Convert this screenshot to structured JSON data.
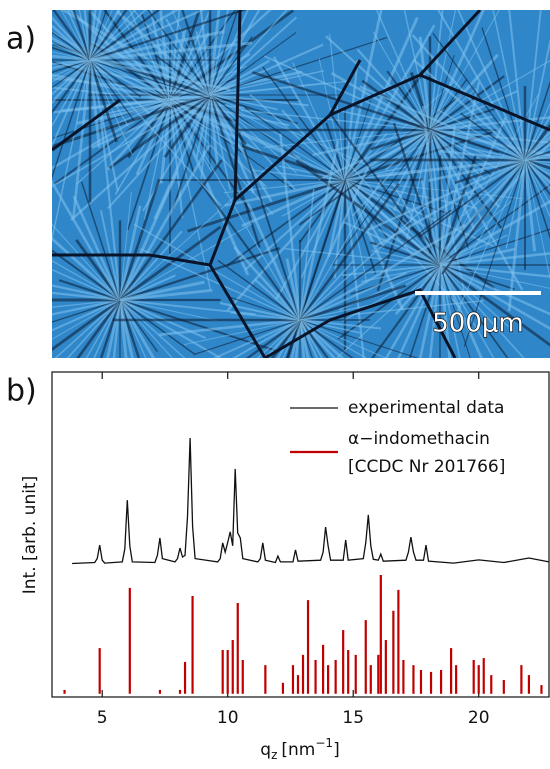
{
  "panel_a": {
    "label": "a)",
    "scale_bar_label": "500μm"
  },
  "chart_data": {
    "type": "line+stick",
    "panel_label": "b)",
    "ylabel": "Int. [arb. unit]",
    "xlabel": {
      "base": "q",
      "sub": "z",
      "unit": "[nm",
      "sup": "−1",
      "close": "]"
    },
    "xlim": [
      3,
      22.8
    ],
    "xticks": [
      5,
      10,
      15,
      20
    ],
    "ylim": [
      -1,
      100
    ],
    "series": [
      {
        "name": "experimental data",
        "color": "#111111",
        "kind": "line",
        "x": [
          3.8,
          4.7,
          4.8,
          4.9,
          5.0,
          5.1,
          5.8,
          5.9,
          6.0,
          6.1,
          6.2,
          7.1,
          7.2,
          7.3,
          7.4,
          7.9,
          8.0,
          8.1,
          8.2,
          8.3,
          8.4,
          8.5,
          8.6,
          8.7,
          9.6,
          9.7,
          9.8,
          9.9,
          10.0,
          10.1,
          10.2,
          10.3,
          10.4,
          10.5,
          10.6,
          11.2,
          11.3,
          11.4,
          11.5,
          11.9,
          12.0,
          12.1,
          12.6,
          12.7,
          12.8,
          13.7,
          13.8,
          13.9,
          14.0,
          14.1,
          14.6,
          14.7,
          14.8,
          15.4,
          15.5,
          15.6,
          15.7,
          15.8,
          16.0,
          16.1,
          16.2,
          17.1,
          17.2,
          17.3,
          17.4,
          17.5,
          17.8,
          17.9,
          18.0,
          19.0,
          20.0,
          21.0,
          22.0,
          22.8
        ],
        "values": [
          40.5,
          40.8,
          42,
          46.2,
          41.5,
          40.6,
          41,
          45,
          60.2,
          46,
          41,
          40.8,
          43,
          48.4,
          42,
          41,
          42,
          45.3,
          42.5,
          43,
          55,
          79.5,
          52,
          42,
          41,
          42,
          46.9,
          44,
          47,
          50.3,
          46,
          69.9,
          50,
          48.4,
          42,
          41,
          42,
          46.9,
          41.5,
          40.8,
          42.8,
          41,
          41,
          44.7,
          41.2,
          41.5,
          44,
          51.8,
          46,
          41.5,
          41.5,
          47.8,
          41.5,
          42,
          47,
          55.6,
          46,
          41.8,
          41.5,
          43.4,
          41.2,
          41.5,
          44,
          48.7,
          44,
          41.5,
          41.5,
          46.2,
          41.2,
          40.6,
          41.6,
          40.8,
          42.2,
          41
        ]
      },
      {
        "name": "α−indomethacin",
        "name_line2": "[CCDC Nr 201766]",
        "color": "#c00000",
        "kind": "stick",
        "x": [
          3.5,
          4.9,
          6.1,
          7.3,
          8.1,
          8.3,
          8.6,
          9.8,
          10.0,
          10.2,
          10.4,
          10.6,
          11.5,
          12.2,
          12.6,
          12.8,
          13.0,
          13.2,
          13.5,
          13.8,
          14.0,
          14.3,
          14.6,
          14.8,
          15.1,
          15.5,
          15.7,
          16.0,
          16.1,
          16.3,
          16.6,
          16.8,
          17.0,
          17.4,
          17.7,
          18.1,
          18.5,
          18.9,
          19.1,
          19.8,
          20.0,
          20.2,
          20.5,
          21.0,
          21.7,
          22.0,
          22.5
        ],
        "values": [
          1.2,
          14.2,
          32.9,
          1.2,
          1.2,
          9.9,
          30.4,
          13.6,
          13.6,
          16.7,
          28.2,
          10.5,
          8.9,
          3.4,
          8.9,
          5.8,
          12.1,
          29.1,
          10.5,
          15.2,
          8.9,
          10.5,
          19.8,
          13.6,
          12.1,
          22.9,
          8.9,
          12.1,
          36.9,
          16.7,
          25.8,
          32.3,
          10.5,
          8.9,
          7.4,
          6.8,
          7.4,
          14.2,
          8.9,
          10.5,
          8.9,
          11.1,
          5.8,
          4.3,
          8.9,
          5.8,
          2.7
        ]
      }
    ]
  }
}
